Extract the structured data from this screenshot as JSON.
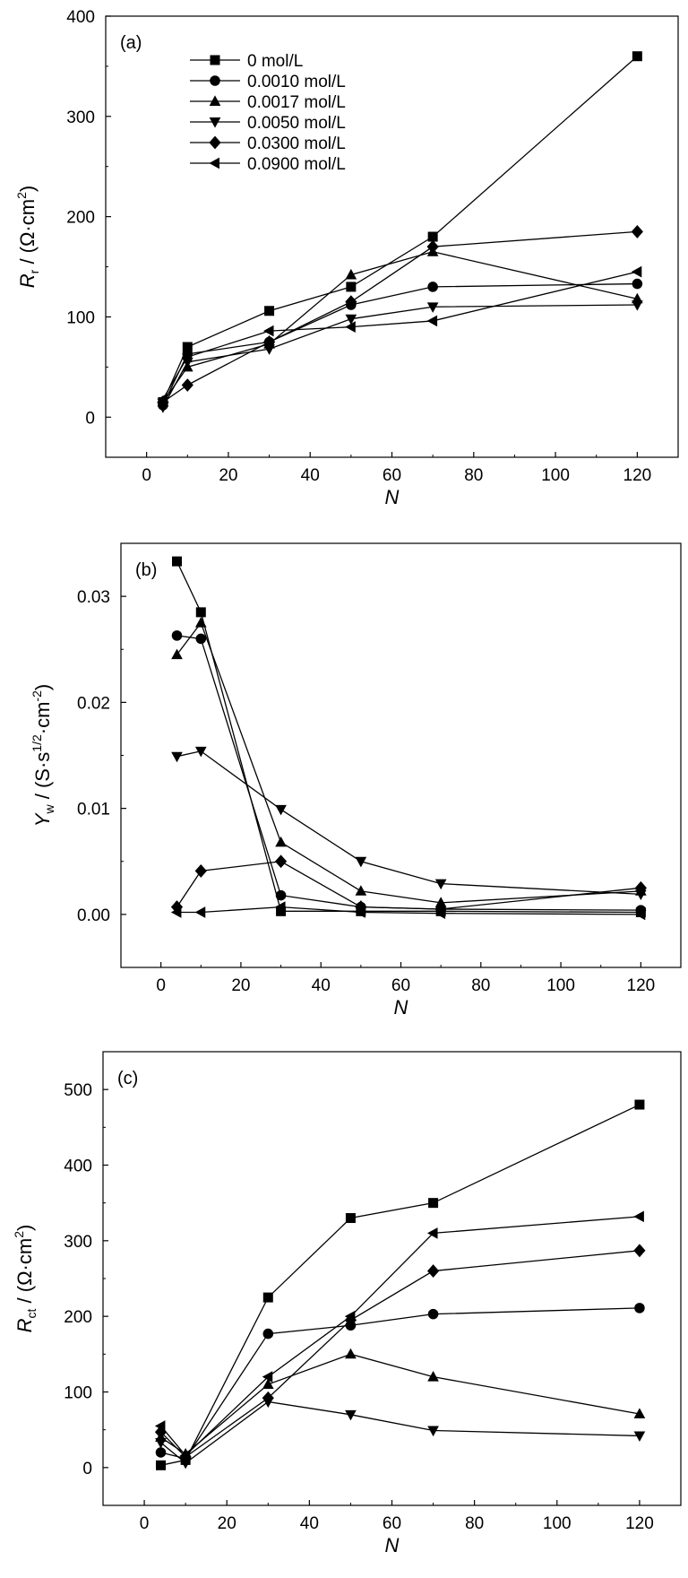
{
  "chart_data": [
    {
      "type": "line",
      "panel_label": "(a)",
      "xlabel": "N",
      "ylabel": {
        "main": "R",
        "sub": "r",
        "unit_pre": " / (Ω·cm",
        "unit_sup": "2",
        "unit_post": ")"
      },
      "xlim": [
        -10,
        130
      ],
      "ylim": [
        -40,
        400
      ],
      "xticks": [
        0,
        20,
        40,
        60,
        80,
        100,
        120
      ],
      "yticks": [
        0,
        100,
        200,
        300,
        400
      ],
      "grid": false,
      "legend_position": "top-left",
      "series": [
        {
          "name": "0 mol/L",
          "marker": "square",
          "x": [
            4,
            10,
            30,
            50,
            70,
            120
          ],
          "y": [
            15,
            70,
            106,
            130,
            180,
            360
          ]
        },
        {
          "name": "0.0010 mol/L",
          "marker": "circle",
          "x": [
            4,
            10,
            30,
            50,
            70,
            120
          ],
          "y": [
            12,
            63,
            75,
            112,
            130,
            133
          ]
        },
        {
          "name": "0.0017 mol/L",
          "marker": "triangle-up",
          "x": [
            4,
            10,
            30,
            50,
            70,
            120
          ],
          "y": [
            15,
            50,
            73,
            142,
            165,
            118
          ]
        },
        {
          "name": "0.0050 mol/L",
          "marker": "triangle-down",
          "x": [
            4,
            10,
            30,
            50,
            70,
            120
          ],
          "y": [
            10,
            55,
            68,
            98,
            110,
            112
          ]
        },
        {
          "name": "0.0300 mol/L",
          "marker": "diamond",
          "x": [
            4,
            10,
            30,
            50,
            70,
            120
          ],
          "y": [
            15,
            32,
            75,
            115,
            170,
            185
          ]
        },
        {
          "name": "0.0900 mol/L",
          "marker": "triangle-left",
          "x": [
            4,
            10,
            30,
            50,
            70,
            120
          ],
          "y": [
            18,
            60,
            86,
            90,
            96,
            145
          ]
        }
      ]
    },
    {
      "type": "line",
      "panel_label": "(b)",
      "xlabel": "N",
      "ylabel": {
        "main": "Y",
        "sub": "w",
        "unit_pre": " / (S·s",
        "unit_sup": "1/2",
        "unit_mid": "·cm",
        "unit_sup2": "-2",
        "unit_post": ")"
      },
      "xlim": [
        -10,
        130
      ],
      "ylim": [
        -0.005,
        0.035
      ],
      "xticks": [
        0,
        20,
        40,
        60,
        80,
        100,
        120
      ],
      "yticks": [
        0.0,
        0.01,
        0.02,
        0.03
      ],
      "ytick_labels": [
        "0.00",
        "0.01",
        "0.02",
        "0.03"
      ],
      "grid": false,
      "series": [
        {
          "name": "0 mol/L",
          "marker": "square",
          "x": [
            4,
            10,
            30,
            50,
            70,
            120
          ],
          "y": [
            0.0333,
            0.0285,
            0.0003,
            0.0003,
            0.0003,
            0.0002
          ]
        },
        {
          "name": "0.0010 mol/L",
          "marker": "circle",
          "x": [
            4,
            10,
            30,
            50,
            70,
            120
          ],
          "y": [
            0.0263,
            0.026,
            0.0018,
            0.0007,
            0.0005,
            0.0004
          ]
        },
        {
          "name": "0.0017 mol/L",
          "marker": "triangle-up",
          "x": [
            4,
            10,
            30,
            50,
            70,
            120
          ],
          "y": [
            0.0245,
            0.0275,
            0.0068,
            0.0022,
            0.0011,
            0.0022
          ]
        },
        {
          "name": "0.0050 mol/L",
          "marker": "triangle-down",
          "x": [
            4,
            10,
            30,
            50,
            70,
            120
          ],
          "y": [
            0.0149,
            0.0154,
            0.0099,
            0.005,
            0.0029,
            0.0019
          ]
        },
        {
          "name": "0.0300 mol/L",
          "marker": "diamond",
          "x": [
            4,
            10,
            30,
            50,
            70,
            120
          ],
          "y": [
            0.0007,
            0.0041,
            0.005,
            0.0007,
            0.0005,
            0.0025
          ]
        },
        {
          "name": "0.0900 mol/L",
          "marker": "triangle-left",
          "x": [
            4,
            10,
            30,
            50,
            70,
            120
          ],
          "y": [
            0.0002,
            0.0002,
            0.0007,
            0.0002,
            0.0001,
            0.0
          ]
        }
      ]
    },
    {
      "type": "line",
      "panel_label": "(c)",
      "xlabel": "N",
      "ylabel": {
        "main": "R",
        "sub": "ct",
        "unit_pre": " / (Ω·cm",
        "unit_sup": "2",
        "unit_post": ")"
      },
      "xlim": [
        -10,
        130
      ],
      "ylim": [
        -50,
        550
      ],
      "xticks": [
        0,
        20,
        40,
        60,
        80,
        100,
        120
      ],
      "yticks": [
        0,
        100,
        200,
        300,
        400,
        500
      ],
      "grid": false,
      "series": [
        {
          "name": "0 mol/L",
          "marker": "square",
          "x": [
            4,
            10,
            30,
            50,
            70,
            120
          ],
          "y": [
            3,
            10,
            225,
            330,
            350,
            480
          ]
        },
        {
          "name": "0.0010 mol/L",
          "marker": "circle",
          "x": [
            4,
            10,
            30,
            50,
            70,
            120
          ],
          "y": [
            20,
            12,
            177,
            188,
            203,
            211
          ]
        },
        {
          "name": "0.0017 mol/L",
          "marker": "triangle-up",
          "x": [
            4,
            10,
            30,
            50,
            70,
            120
          ],
          "y": [
            40,
            18,
            110,
            150,
            120,
            71
          ]
        },
        {
          "name": "0.0050 mol/L",
          "marker": "triangle-down",
          "x": [
            4,
            10,
            30,
            50,
            70,
            120
          ],
          "y": [
            33,
            6,
            87,
            70,
            49,
            42
          ]
        },
        {
          "name": "0.0300 mol/L",
          "marker": "diamond",
          "x": [
            4,
            10,
            30,
            50,
            70,
            120
          ],
          "y": [
            47,
            14,
            92,
            195,
            260,
            287
          ]
        },
        {
          "name": "0.0900 mol/L",
          "marker": "triangle-left",
          "x": [
            4,
            10,
            30,
            50,
            70,
            120
          ],
          "y": [
            55,
            16,
            120,
            200,
            310,
            332
          ]
        }
      ]
    }
  ]
}
